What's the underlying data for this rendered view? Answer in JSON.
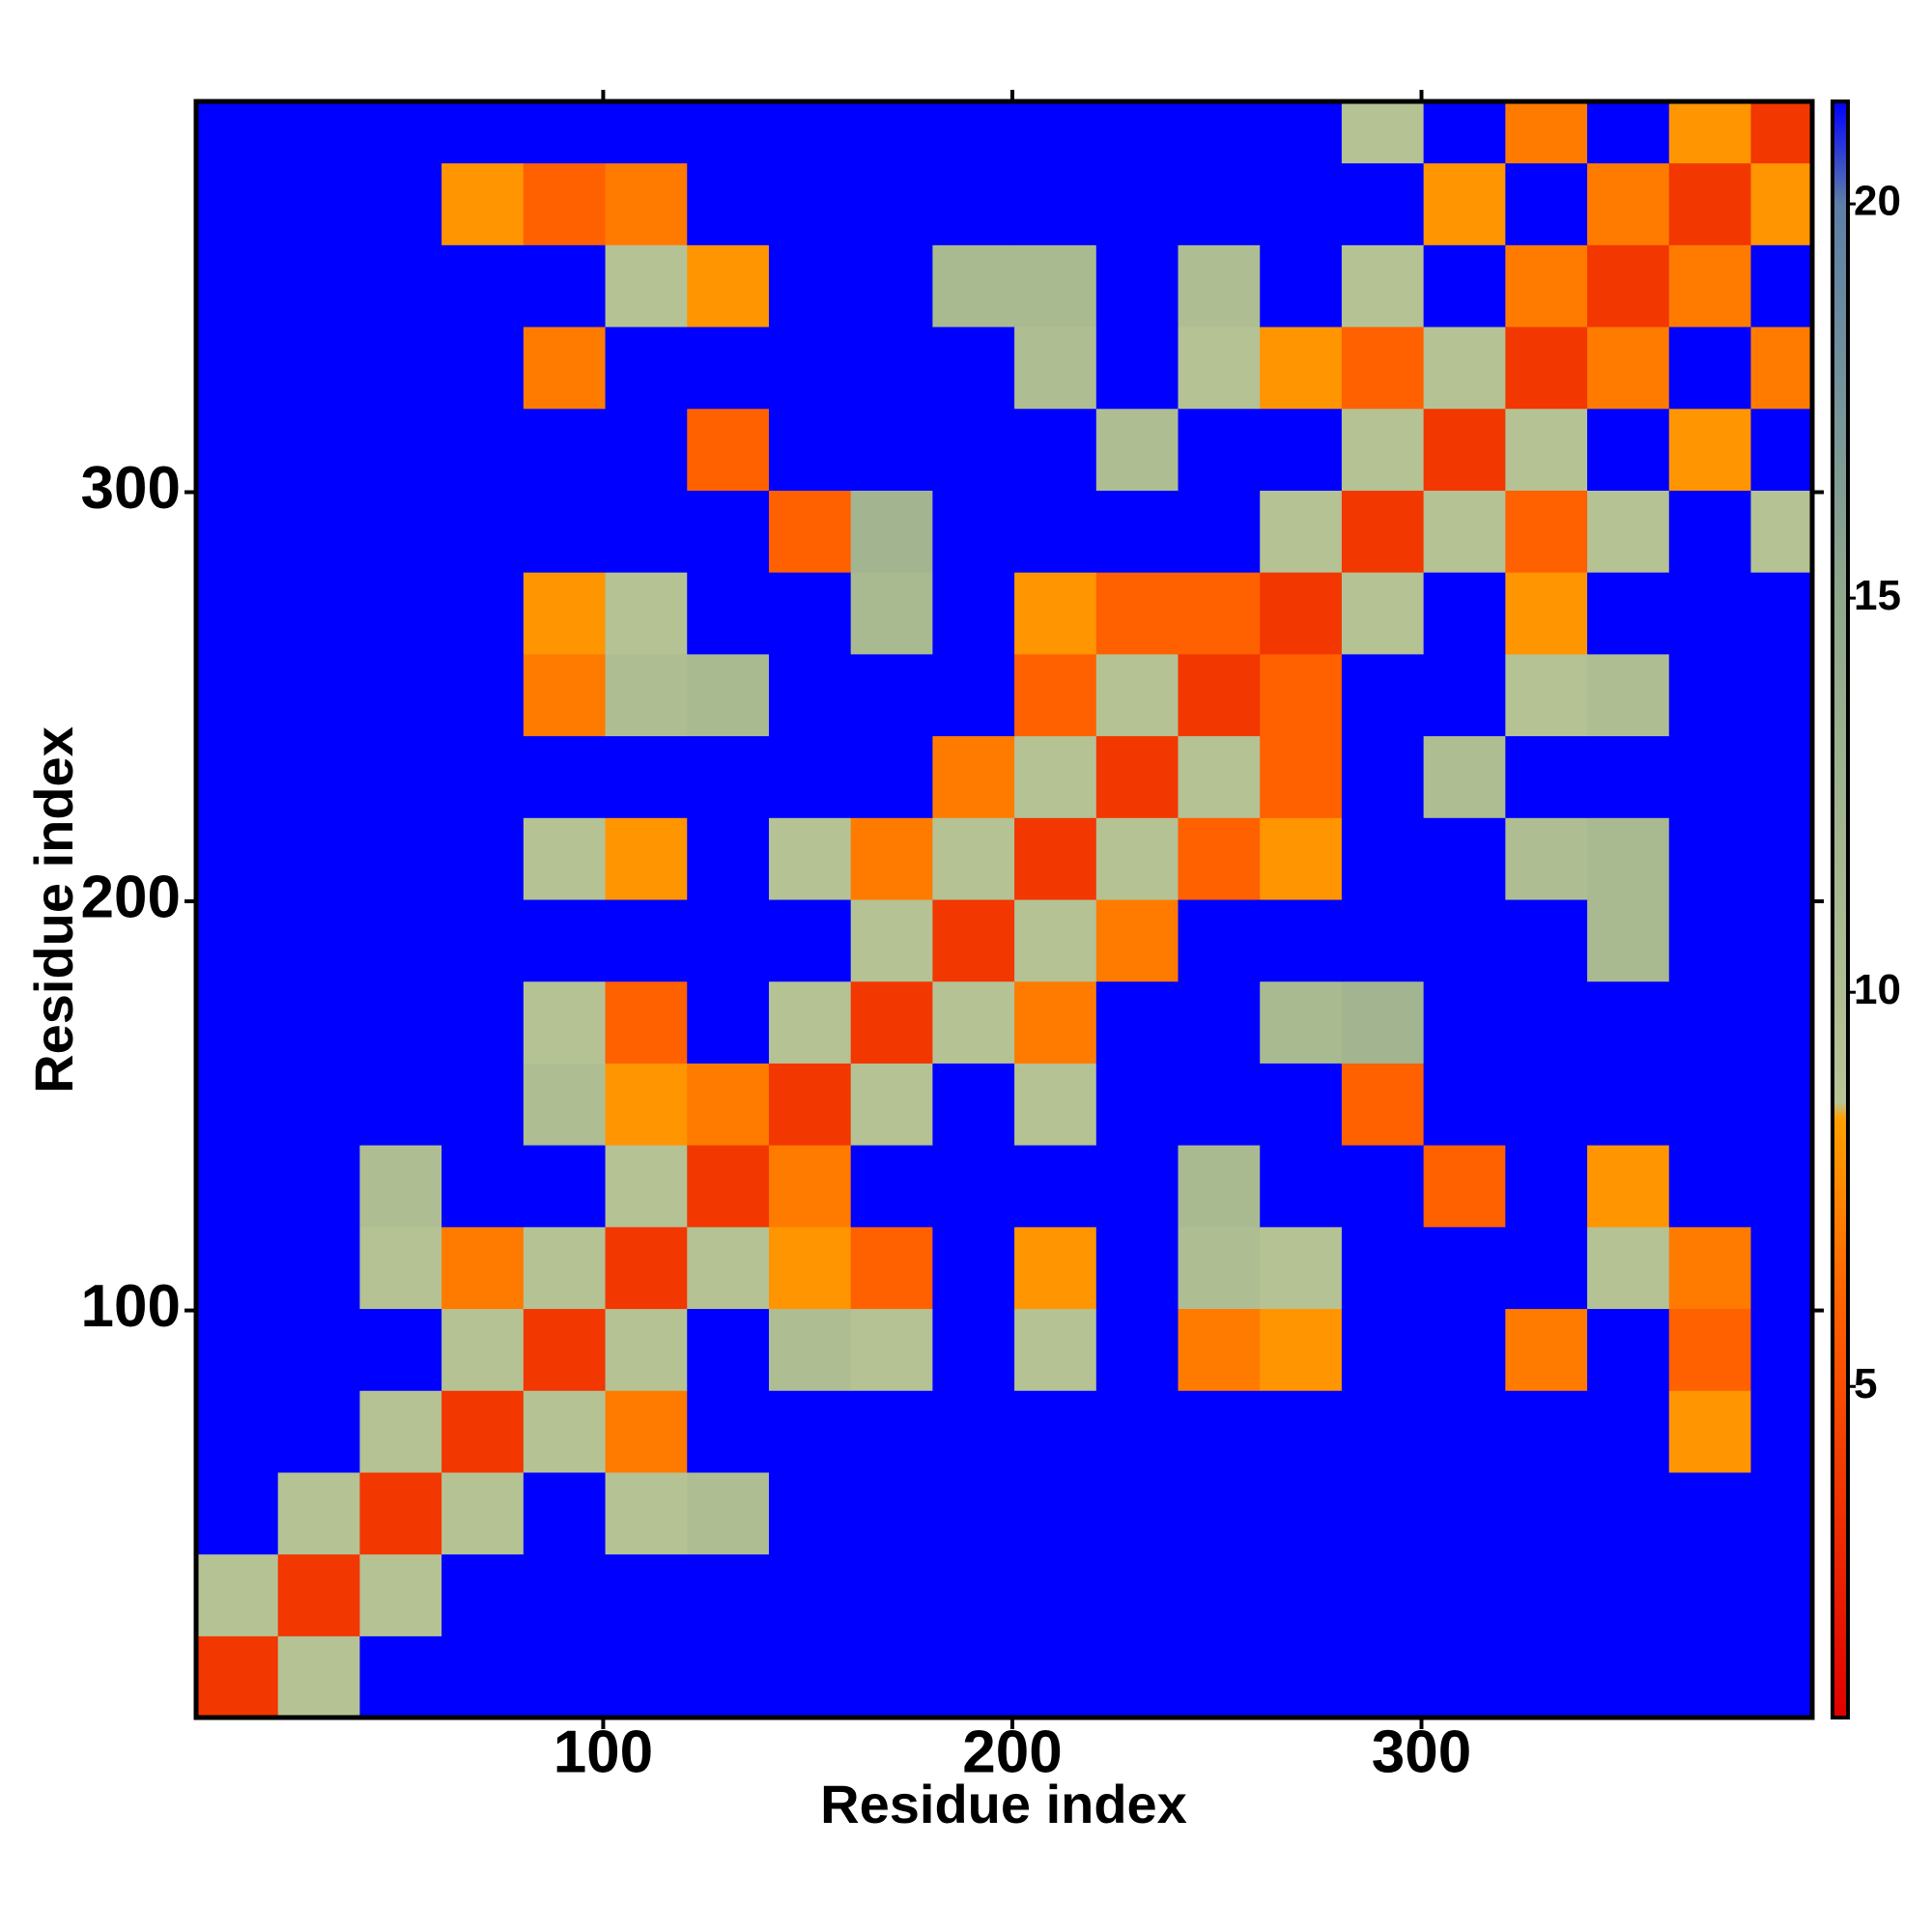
{
  "chart_data": {
    "type": "heatmap",
    "xlabel": "Residue index",
    "ylabel": "Residue index",
    "x_edges": [
      0.5,
      20.5,
      40.5,
      60.5,
      80.5,
      100.5,
      120.5,
      140.5,
      160.5,
      180.5,
      200.5,
      220.5,
      240.5,
      260.5,
      280.5,
      300.5,
      320.5,
      340.5,
      360.5,
      380.5,
      395.5
    ],
    "y_edges": [
      0.5,
      20.5,
      40.5,
      60.5,
      80.5,
      100.5,
      120.5,
      140.5,
      160.5,
      180.5,
      200.5,
      220.5,
      240.5,
      260.5,
      280.5,
      300.5,
      320.5,
      340.5,
      360.5,
      380.5,
      395.5
    ],
    "xlim": [
      0.5,
      395.5
    ],
    "ylim": [
      0.5,
      395.5
    ],
    "xticks": [
      100,
      200,
      300
    ],
    "yticks": [
      100,
      200,
      300
    ],
    "zlim": [
      0.8,
      21.3
    ],
    "zticks": [
      5,
      10,
      15,
      20
    ],
    "colorscale": [
      [
        0.8,
        "#e00000"
      ],
      [
        6,
        "#ff6000"
      ],
      [
        8.4,
        "#ffa000"
      ],
      [
        8.6,
        "#b8c494"
      ],
      [
        15,
        "#8fa88c"
      ],
      [
        20,
        "#5d7fa6"
      ],
      [
        21.3,
        "#0000ff"
      ]
    ],
    "z": [
      [
        3.8,
        9,
        22,
        22,
        22,
        22,
        22,
        22,
        22,
        22,
        22,
        22,
        22,
        22,
        22,
        22,
        22,
        22,
        22,
        22
      ],
      [
        9,
        3.8,
        9,
        22,
        22,
        22,
        22,
        22,
        22,
        22,
        22,
        22,
        22,
        22,
        22,
        22,
        22,
        22,
        22,
        22
      ],
      [
        22,
        9,
        3.8,
        9,
        22,
        9,
        10,
        22,
        22,
        22,
        22,
        22,
        22,
        22,
        22,
        22,
        22,
        22,
        22,
        22
      ],
      [
        22,
        22,
        9,
        3.8,
        9,
        7,
        22,
        22,
        22,
        22,
        22,
        22,
        22,
        22,
        22,
        22,
        22,
        22,
        8,
        22
      ],
      [
        22,
        22,
        22,
        9,
        3.8,
        9,
        22,
        10,
        9,
        22,
        9,
        22,
        7,
        8,
        22,
        22,
        7,
        22,
        6,
        22
      ],
      [
        22,
        22,
        9,
        7,
        9,
        3.8,
        9,
        8,
        6,
        22,
        8,
        22,
        10,
        9,
        22,
        22,
        22,
        9,
        7,
        22
      ],
      [
        22,
        22,
        10,
        22,
        22,
        9,
        3.8,
        7,
        22,
        22,
        22,
        22,
        11,
        22,
        22,
        6,
        22,
        8,
        22,
        22
      ],
      [
        22,
        22,
        22,
        22,
        10,
        8,
        7,
        3.8,
        9,
        22,
        9,
        22,
        22,
        22,
        6,
        22,
        22,
        22,
        22,
        22
      ],
      [
        22,
        22,
        22,
        22,
        9,
        6,
        22,
        9,
        3.8,
        9,
        7,
        22,
        22,
        11,
        12,
        22,
        22,
        22,
        22,
        22
      ],
      [
        22,
        22,
        22,
        22,
        22,
        22,
        22,
        22,
        9,
        3.8,
        9,
        7,
        22,
        22,
        22,
        22,
        22,
        11,
        22,
        22
      ],
      [
        22,
        22,
        22,
        22,
        9,
        8,
        22,
        9,
        7,
        9,
        3.8,
        9,
        6,
        8,
        22,
        22,
        10,
        11,
        22,
        22
      ],
      [
        22,
        22,
        22,
        22,
        22,
        22,
        22,
        22,
        22,
        7,
        9,
        3.8,
        9,
        6,
        22,
        10,
        22,
        22,
        22,
        22
      ],
      [
        22,
        22,
        22,
        22,
        7,
        10,
        11,
        22,
        22,
        22,
        6,
        9,
        3.8,
        6,
        22,
        22,
        9,
        10,
        22,
        22
      ],
      [
        22,
        22,
        22,
        22,
        8,
        9,
        22,
        22,
        11,
        22,
        8,
        6,
        6,
        3.8,
        9,
        22,
        8,
        22,
        22,
        22
      ],
      [
        22,
        22,
        22,
        22,
        22,
        22,
        22,
        6,
        12,
        22,
        22,
        22,
        22,
        9,
        3.8,
        9,
        6,
        9,
        22,
        9
      ],
      [
        22,
        22,
        22,
        22,
        22,
        22,
        6,
        22,
        22,
        22,
        22,
        10,
        22,
        22,
        9,
        3.8,
        9,
        22,
        8,
        22
      ],
      [
        22,
        22,
        22,
        22,
        7,
        22,
        22,
        22,
        22,
        22,
        10,
        22,
        9,
        8,
        6,
        9,
        3.8,
        7,
        22,
        7
      ],
      [
        22,
        22,
        22,
        22,
        22,
        9,
        8,
        22,
        22,
        11,
        11,
        22,
        10,
        22,
        9,
        22,
        7,
        3.8,
        7,
        22
      ],
      [
        22,
        22,
        22,
        8,
        6,
        7,
        22,
        22,
        22,
        22,
        22,
        22,
        22,
        22,
        22,
        8,
        22,
        7,
        3.8,
        8
      ],
      [
        22,
        22,
        22,
        22,
        22,
        22,
        22,
        22,
        22,
        22,
        22,
        22,
        22,
        22,
        9,
        22,
        7,
        22,
        8,
        3.8
      ]
    ]
  }
}
